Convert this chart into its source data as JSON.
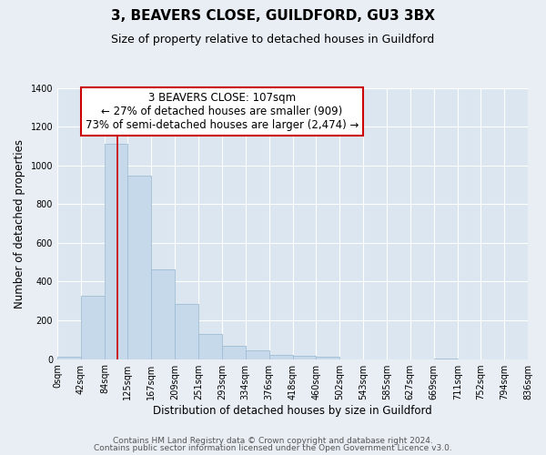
{
  "title": "3, BEAVERS CLOSE, GUILDFORD, GU3 3BX",
  "subtitle": "Size of property relative to detached houses in Guildford",
  "xlabel": "Distribution of detached houses by size in Guildford",
  "ylabel": "Number of detached properties",
  "bin_edges": [
    0,
    42,
    84,
    125,
    167,
    209,
    251,
    293,
    334,
    376,
    418,
    460,
    502,
    543,
    585,
    627,
    669,
    711,
    752,
    794,
    836
  ],
  "bin_labels": [
    "0sqm",
    "42sqm",
    "84sqm",
    "125sqm",
    "167sqm",
    "209sqm",
    "251sqm",
    "293sqm",
    "334sqm",
    "376sqm",
    "418sqm",
    "460sqm",
    "502sqm",
    "543sqm",
    "585sqm",
    "627sqm",
    "669sqm",
    "711sqm",
    "752sqm",
    "794sqm",
    "836sqm"
  ],
  "counts": [
    10,
    325,
    1110,
    945,
    465,
    283,
    128,
    70,
    45,
    22,
    18,
    10,
    0,
    0,
    0,
    0,
    5,
    0,
    0,
    0
  ],
  "bar_color": "#c5d9ea",
  "bar_edge_color": "#a0bdd4",
  "property_line_x": 107,
  "annotation_title": "3 BEAVERS CLOSE: 107sqm",
  "annotation_line1": "← 27% of detached houses are smaller (909)",
  "annotation_line2": "73% of semi-detached houses are larger (2,474) →",
  "annotation_box_color": "#ffffff",
  "annotation_box_edge_color": "#cc0000",
  "ylim": [
    0,
    1400
  ],
  "yticks": [
    0,
    200,
    400,
    600,
    800,
    1000,
    1200,
    1400
  ],
  "footer_line1": "Contains HM Land Registry data © Crown copyright and database right 2024.",
  "footer_line2": "Contains public sector information licensed under the Open Government Licence v3.0.",
  "fig_background_color": "#e8eef4",
  "plot_background_color": "#dce6f0",
  "grid_color": "#ffffff",
  "title_fontsize": 11,
  "subtitle_fontsize": 9,
  "axis_label_fontsize": 8.5,
  "tick_fontsize": 7,
  "annotation_fontsize": 8.5,
  "footer_fontsize": 6.5
}
